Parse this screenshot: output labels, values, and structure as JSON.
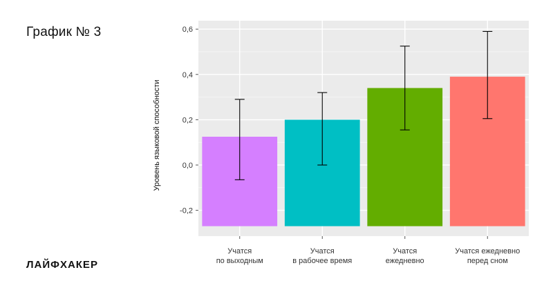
{
  "header": {
    "title": "График № 3"
  },
  "footer": {
    "brand": "ЛАЙФХАКЕР"
  },
  "chart_data": {
    "type": "bar",
    "title": "",
    "xlabel": "",
    "ylabel": "Уровень языковой способности",
    "ylim": [
      -0.27,
      0.6
    ],
    "yticks": [
      -0.2,
      0.0,
      0.2,
      0.4,
      0.6
    ],
    "ytick_labels": [
      "-0,2",
      "0,0",
      "0,2",
      "0,4",
      "0,6"
    ],
    "categories": [
      [
        "Учатся",
        "по выходным"
      ],
      [
        "Учатся",
        "в рабочее время"
      ],
      [
        "Учатся",
        "ежедневно"
      ],
      [
        "Учатся ежедневно",
        "перед сном"
      ]
    ],
    "values": [
      0.125,
      0.2,
      0.34,
      0.39
    ],
    "error_low": [
      -0.065,
      0.0,
      0.155,
      0.205
    ],
    "error_high": [
      0.29,
      0.32,
      0.525,
      0.59
    ],
    "colors": [
      "#d57fff",
      "#00bfc4",
      "#63ad00",
      "#ff766e"
    ],
    "background": "#ebebeb",
    "grid": true,
    "legend": "none"
  }
}
